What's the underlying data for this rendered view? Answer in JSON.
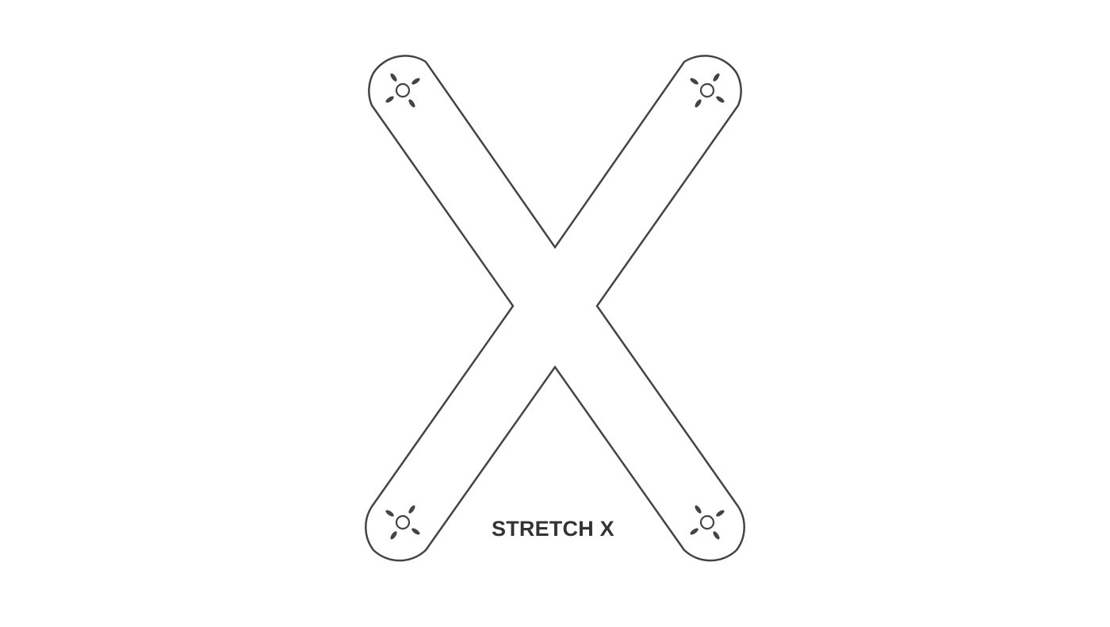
{
  "diagram": {
    "caption": "STRETCH X",
    "outline_color": "#444444",
    "caption_color": "#333333",
    "background_color": "#ffffff",
    "mount_points": [
      {
        "name": "top-left"
      },
      {
        "name": "top-right"
      },
      {
        "name": "bottom-left"
      },
      {
        "name": "bottom-right"
      }
    ]
  }
}
